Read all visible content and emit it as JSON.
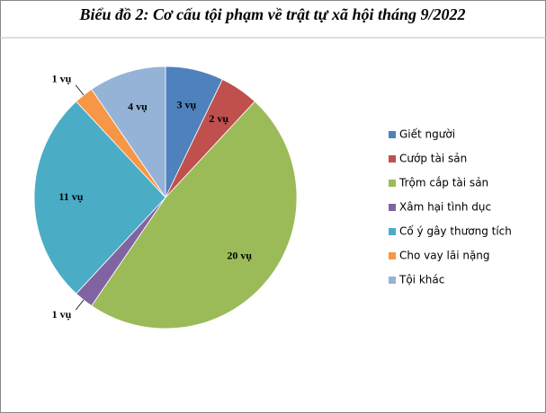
{
  "chart_data": {
    "type": "pie",
    "title": "Biểu đồ 2: Cơ cấu tội phạm về trật tự xã hội tháng 9/2022",
    "categories": [
      "Giết người",
      "Cướp tài sản",
      "Trộm cắp tài sản",
      "Xâm hại tình dục",
      "Cố ý gây thương tích",
      "Cho vay lãi nặng",
      "Tội khác"
    ],
    "values": [
      3,
      2,
      20,
      1,
      11,
      1,
      4
    ],
    "value_labels": [
      "3 vụ",
      "2 vụ",
      "20 vụ",
      "1 vụ",
      "11 vụ",
      "1 vụ",
      "4 vụ"
    ],
    "colors": [
      "#4f81bd",
      "#c0504d",
      "#9bbb59",
      "#8064a2",
      "#4bacc6",
      "#f79646",
      "#95b3d7"
    ],
    "legend": "right"
  }
}
